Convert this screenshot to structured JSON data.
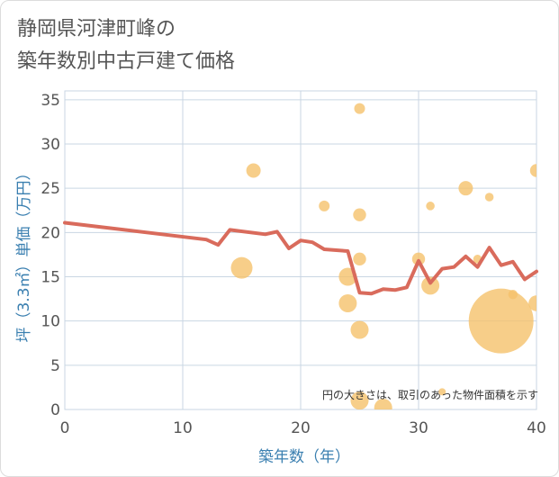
{
  "title_line1": "静岡県河津町峰の",
  "title_line2": "築年数別中古戸建て価格",
  "note": "円の大きさは、取引のあった物件面積を示す",
  "colors": {
    "line": "#d96b5c",
    "bubble": "#f5c26b",
    "grid": "#c9d6e3",
    "axis_text": "#3a7fb0"
  },
  "chart_data": {
    "type": "scatter",
    "xlabel": "築年数（年）",
    "ylabel": "坪（3.3㎡）単価（万円）",
    "xlim": [
      0,
      40
    ],
    "ylim": [
      0,
      36
    ],
    "x_ticks": [
      0,
      10,
      20,
      30,
      40
    ],
    "y_ticks": [
      0,
      5,
      10,
      15,
      20,
      25,
      30,
      35
    ],
    "grid": true,
    "bubbles": [
      {
        "x": 15,
        "y": 16,
        "size": 3
      },
      {
        "x": 16,
        "y": 27,
        "size": 2
      },
      {
        "x": 22,
        "y": 23,
        "size": 1.5
      },
      {
        "x": 24,
        "y": 15,
        "size": 2.5
      },
      {
        "x": 24,
        "y": 12,
        "size": 2.5
      },
      {
        "x": 25,
        "y": 34,
        "size": 1.5
      },
      {
        "x": 25,
        "y": 22,
        "size": 1.8
      },
      {
        "x": 25,
        "y": 17,
        "size": 1.8
      },
      {
        "x": 25,
        "y": 9,
        "size": 2.5
      },
      {
        "x": 25,
        "y": 1,
        "size": 2.5
      },
      {
        "x": 27,
        "y": 0.2,
        "size": 2.5
      },
      {
        "x": 30,
        "y": 17,
        "size": 1.8
      },
      {
        "x": 31,
        "y": 14,
        "size": 2.5
      },
      {
        "x": 31,
        "y": 23,
        "size": 1.2
      },
      {
        "x": 32,
        "y": 2,
        "size": 1
      },
      {
        "x": 34,
        "y": 25,
        "size": 2
      },
      {
        "x": 35,
        "y": 17,
        "size": 1.2
      },
      {
        "x": 36,
        "y": 24,
        "size": 1.2
      },
      {
        "x": 37,
        "y": 10,
        "size": 9
      },
      {
        "x": 38,
        "y": 13,
        "size": 1.3
      },
      {
        "x": 40,
        "y": 27,
        "size": 1.8
      },
      {
        "x": 40,
        "y": 12,
        "size": 2.2
      }
    ],
    "trend_line": {
      "x": [
        0,
        12,
        13,
        14,
        17,
        18,
        19,
        20,
        21,
        22,
        24,
        25,
        26,
        27,
        28,
        29,
        30,
        31,
        32,
        33,
        34,
        35,
        36,
        37,
        38,
        39,
        40
      ],
      "y": [
        21.1,
        19.2,
        18.6,
        20.3,
        19.8,
        20.1,
        18.2,
        19.1,
        18.9,
        18.1,
        17.9,
        13.2,
        13.1,
        13.6,
        13.5,
        13.8,
        16.8,
        14.3,
        15.9,
        16.1,
        17.3,
        16.1,
        18.3,
        16.3,
        16.7,
        14.7,
        15.6
      ]
    }
  }
}
